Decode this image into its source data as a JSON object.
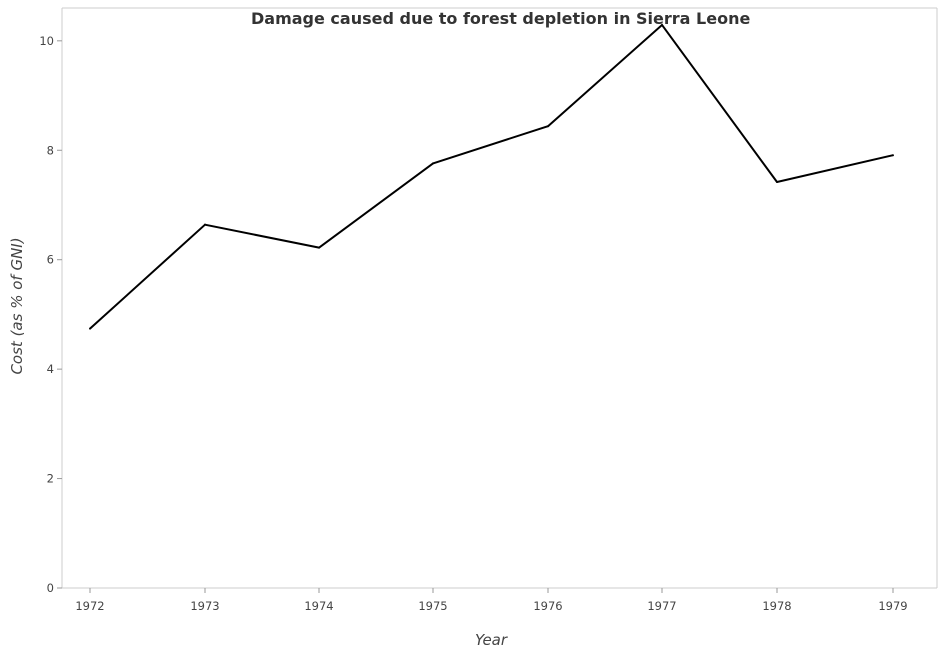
{
  "chart_data": {
    "type": "line",
    "title": "Damage caused due to forest depletion in Sierra Leone",
    "xlabel": "Year",
    "ylabel": "Cost (as % of GNI)",
    "x": [
      "1972",
      "1973",
      "1974",
      "1975",
      "1976",
      "1977",
      "1978",
      "1979"
    ],
    "series": [
      {
        "values": [
          4.74,
          6.64,
          6.22,
          7.76,
          8.44,
          10.29,
          7.42,
          7.91
        ]
      }
    ],
    "ylim": [
      0,
      10.6
    ],
    "yticks": [
      0,
      2,
      4,
      6,
      8,
      10
    ],
    "ytick_labels": [
      "0",
      "2",
      "4",
      "6",
      "8",
      "10"
    ],
    "grid": false,
    "legend": "none",
    "line_color": "#000000"
  }
}
